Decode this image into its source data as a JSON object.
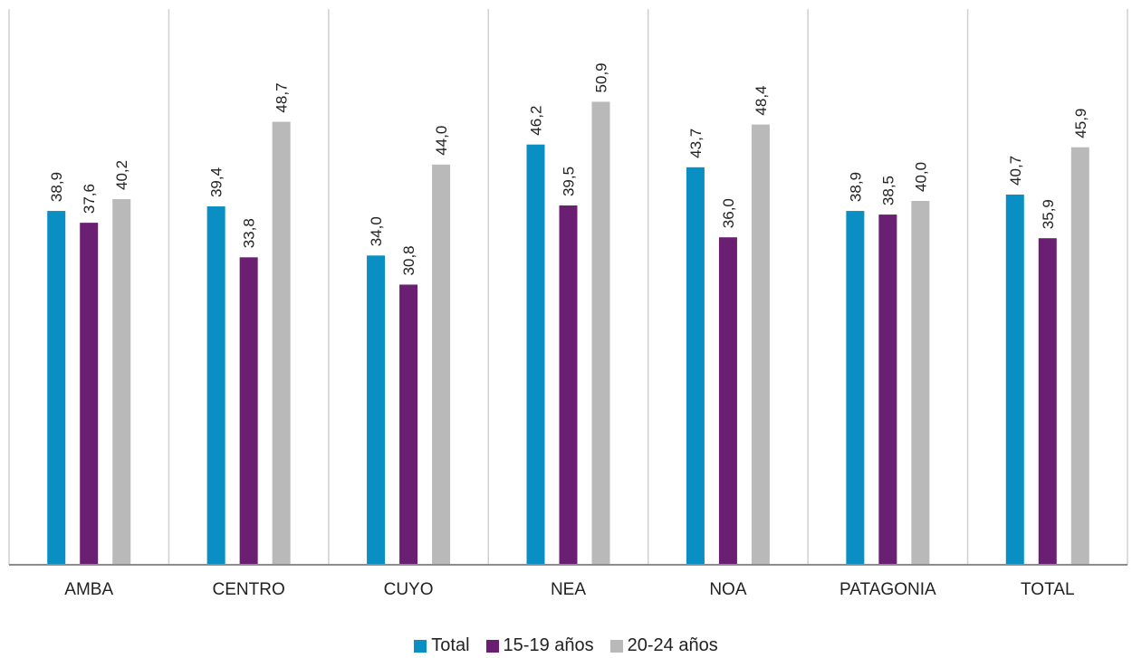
{
  "chart_data": {
    "type": "bar",
    "categories": [
      "AMBA",
      "CENTRO",
      "CUYO",
      "NEA",
      "NOA",
      "PATAGONIA",
      "TOTAL"
    ],
    "series": [
      {
        "name": "Total",
        "color": "#0a8fc4",
        "values": [
          38.9,
          39.4,
          34.0,
          46.2,
          43.7,
          38.9,
          40.7
        ]
      },
      {
        "name": "15-19 años",
        "color": "#6a1f73",
        "values": [
          37.6,
          33.8,
          30.8,
          39.5,
          36.0,
          38.5,
          35.9
        ]
      },
      {
        "name": "20-24 años",
        "color": "#b9b9b9",
        "values": [
          40.2,
          48.7,
          44.0,
          50.9,
          48.4,
          40.0,
          45.9
        ]
      }
    ],
    "data_labels": [
      [
        "38,9",
        "37,6",
        "40,2"
      ],
      [
        "39,4",
        "33,8",
        "48,7"
      ],
      [
        "34,0",
        "30,8",
        "44,0"
      ],
      [
        "46,2",
        "39,5",
        "50,9"
      ],
      [
        "43,7",
        "36,0",
        "48,4"
      ],
      [
        "38,9",
        "38,5",
        "40,0"
      ],
      [
        "40,7",
        "35,9",
        "45,9"
      ]
    ],
    "ylim": [
      0,
      56
    ],
    "grid": false,
    "legend_position": "bottom"
  }
}
